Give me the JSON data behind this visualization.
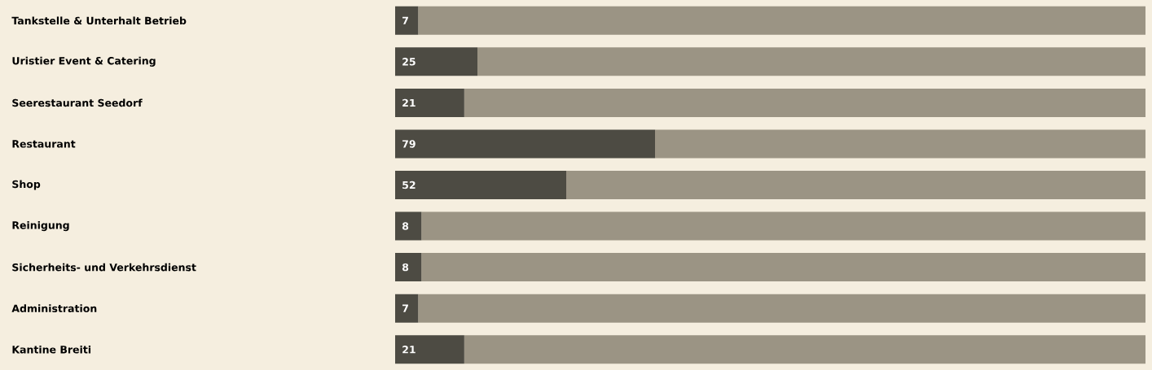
{
  "chart_data": {
    "type": "bar",
    "orientation": "horizontal",
    "stacked": true,
    "categories": [
      "Tankstelle & Unterhalt Betrieb",
      "Uristier Event & Catering",
      "Seerestaurant Seedorf",
      "Restaurant",
      "Shop",
      "Reinigung",
      "Sicherheits- und Verkehrsdienst",
      "Administration",
      "Kantine Breiti"
    ],
    "series": [
      {
        "color": "#4d4b43",
        "values": [
          7,
          25,
          21,
          79,
          52,
          8,
          8,
          7,
          21
        ],
        "value_labels": [
          "7",
          "25",
          "21",
          "79",
          "52",
          "8",
          "8",
          "7",
          "21"
        ]
      },
      {
        "color": "#9b9484",
        "values": [
          221,
          203,
          207,
          149,
          176,
          220,
          220,
          221,
          207
        ]
      }
    ]
  }
}
